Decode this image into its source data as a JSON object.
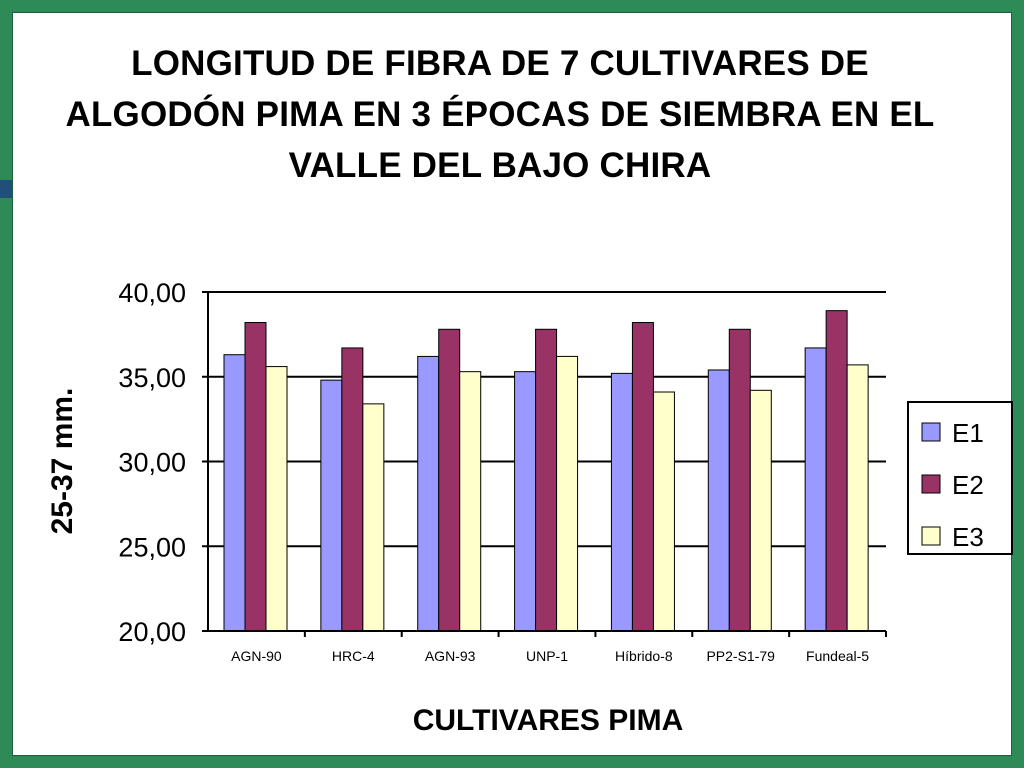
{
  "chart_data": {
    "type": "bar",
    "title": "LONGITUD DE FIBRA DE 7 CULTIVARES DE ALGODÓN PIMA EN 3 ÉPOCAS DE SIEMBRA EN EL VALLE DEL BAJO CHIRA",
    "xlabel": "CULTIVARES  PIMA",
    "ylabel": "25-37 mm.",
    "ylim": [
      20,
      40
    ],
    "yticks": [
      "20,00",
      "25,00",
      "30,00",
      "35,00",
      "40,00"
    ],
    "categories": [
      "AGN-90",
      "HRC-4",
      "AGN-93",
      "UNP-1",
      "Híbrido-8",
      "PP2-S1-79",
      "Fundeal-5"
    ],
    "series": [
      {
        "name": "E1",
        "color": "#9999ff",
        "values": [
          36.3,
          34.8,
          36.2,
          35.3,
          35.2,
          35.4,
          36.7
        ]
      },
      {
        "name": "E2",
        "color": "#993366",
        "values": [
          38.2,
          36.7,
          37.8,
          37.8,
          38.2,
          37.8,
          38.9
        ]
      },
      {
        "name": "E3",
        "color": "#ffffcc",
        "values": [
          35.6,
          33.4,
          35.3,
          36.2,
          34.1,
          34.2,
          35.7
        ]
      }
    ],
    "grid": true,
    "legend": "right"
  }
}
